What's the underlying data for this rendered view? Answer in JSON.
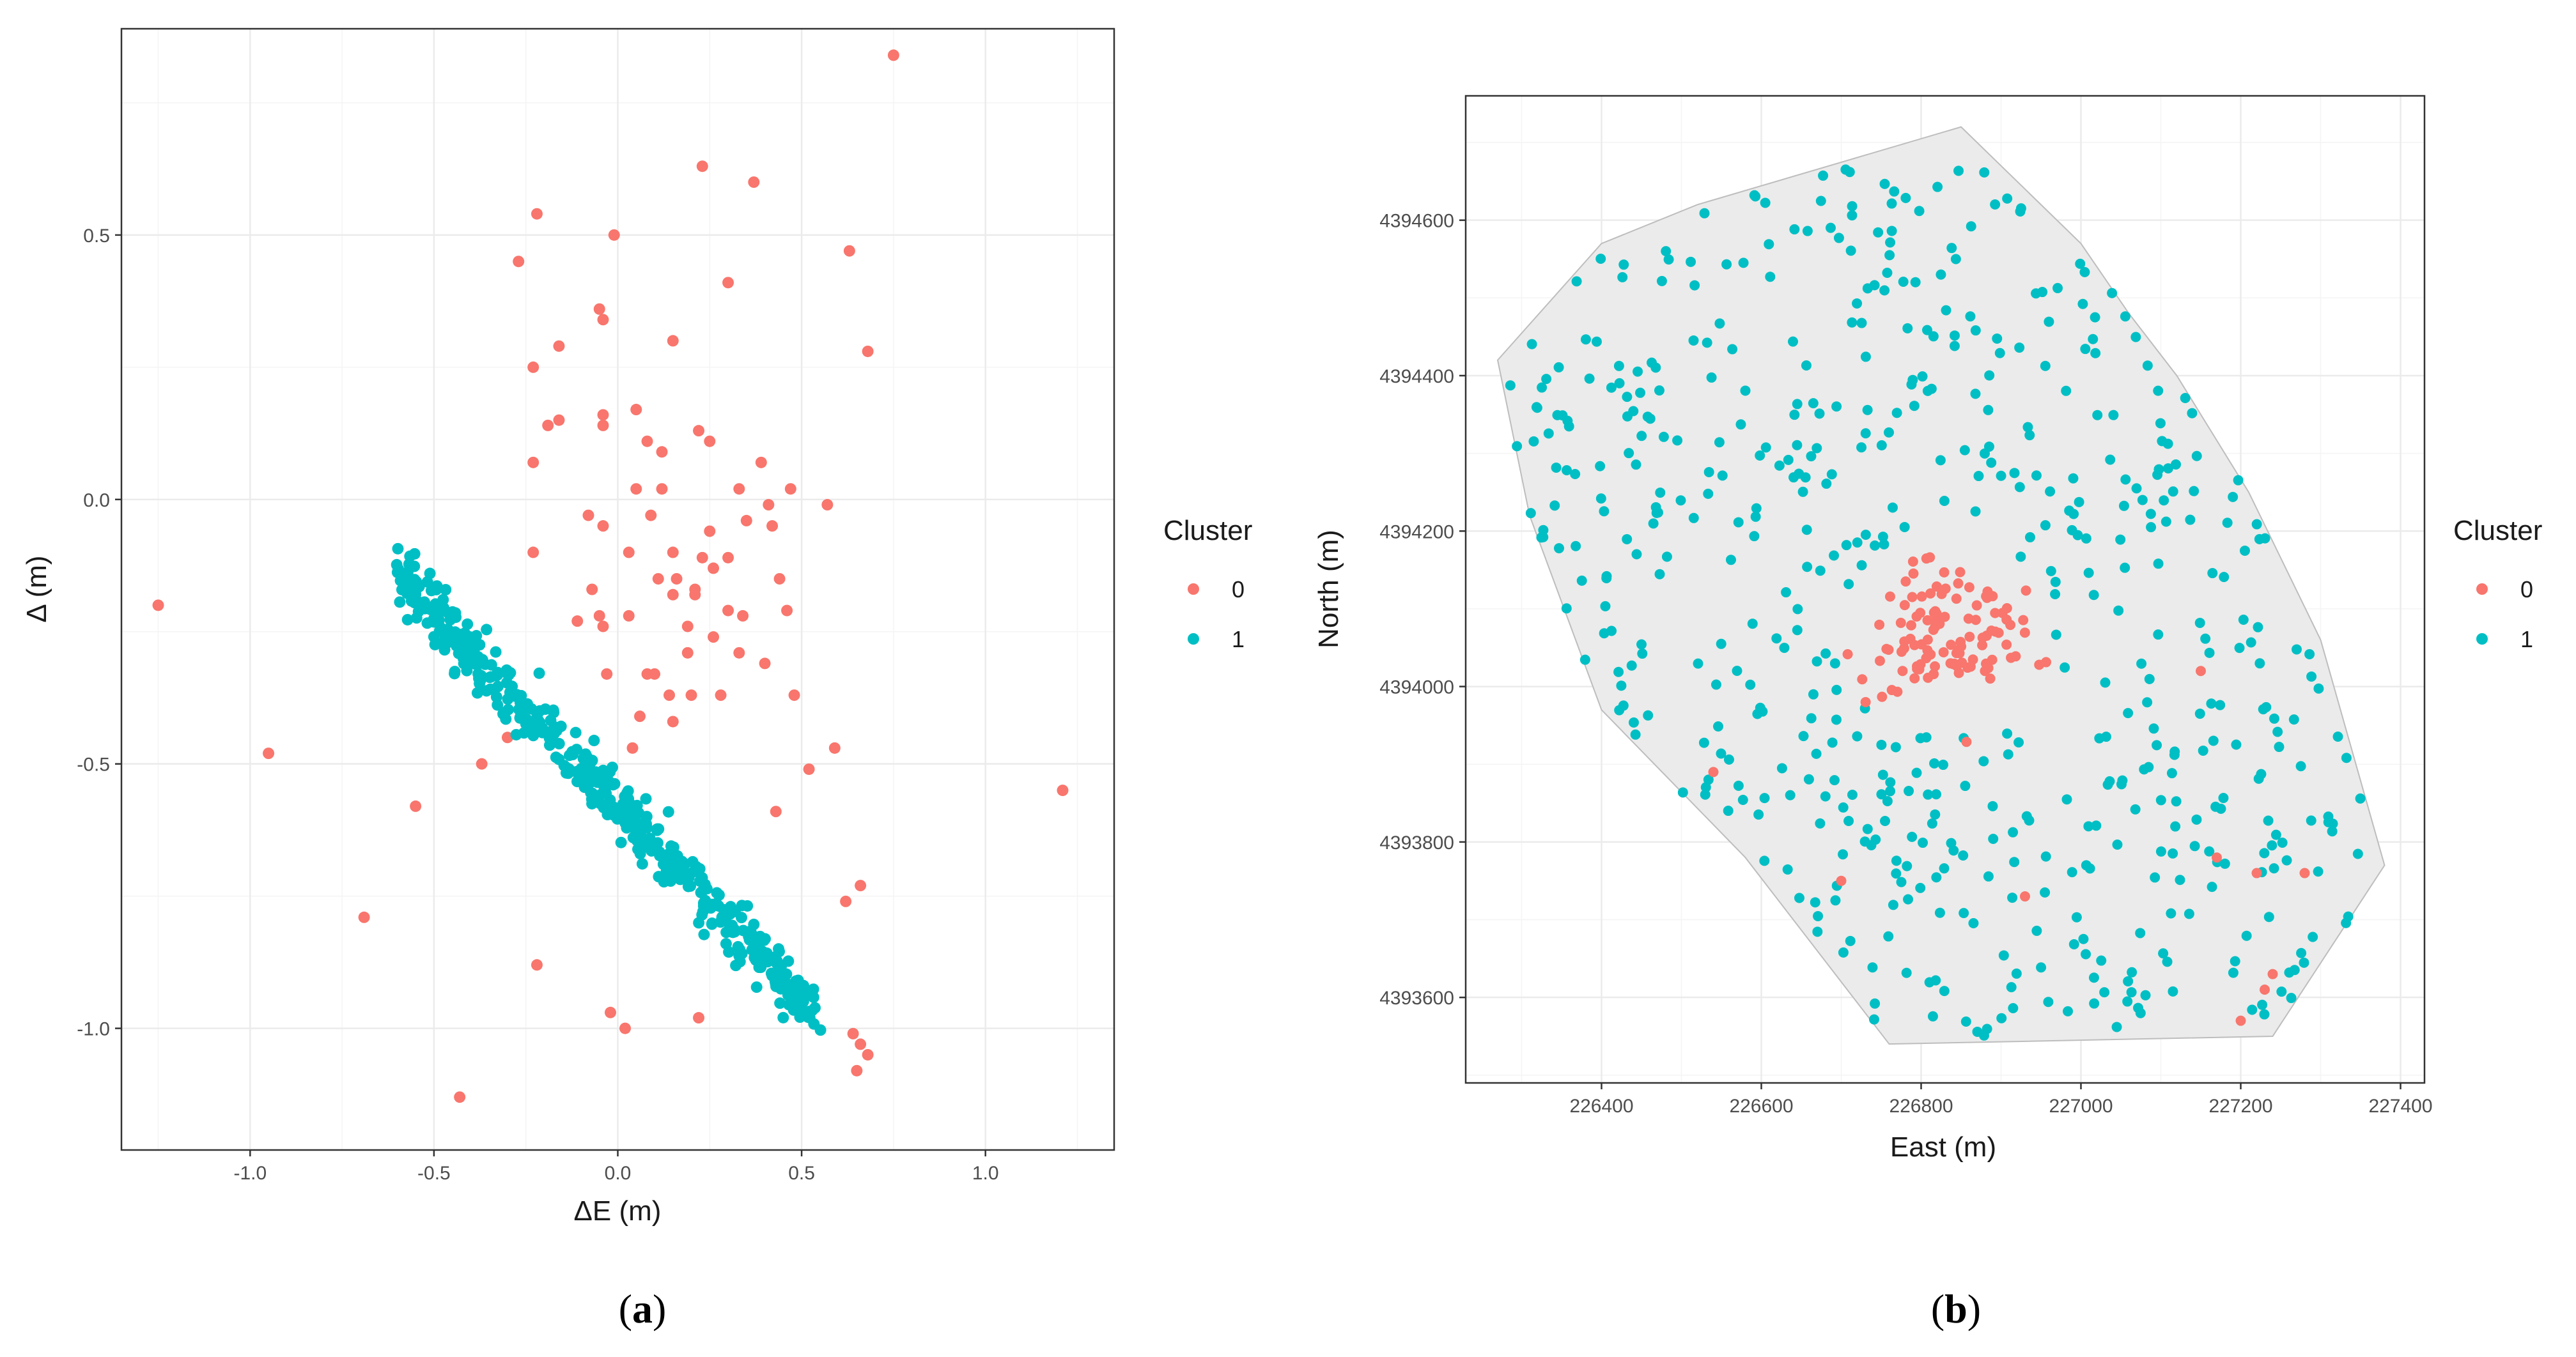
{
  "colors": {
    "cluster0": "#F8766D",
    "cluster1": "#00BFC4",
    "hull_fill": "#EBEBEB",
    "hull_stroke": "#BDBDBD"
  },
  "legend": {
    "title": "Cluster",
    "items": [
      "0",
      "1"
    ]
  },
  "panels": {
    "a": {
      "label_prefix": "(",
      "label_letter": "a",
      "label_suffix": ")"
    },
    "b": {
      "label_prefix": "(",
      "label_letter": "b",
      "label_suffix": ")"
    }
  },
  "chart_data": [
    {
      "type": "scatter",
      "panel": "a",
      "xlabel": "ΔE (m)",
      "ylabel": "Δ (m)",
      "xlim": [
        -1.35,
        1.35
      ],
      "ylim": [
        -1.23,
        0.89
      ],
      "xticks": [
        "-1.0",
        "-0.5",
        "0.0",
        "0.5",
        "1.0"
      ],
      "xtick_values": [
        -1.0,
        -0.5,
        0.0,
        0.5,
        1.0
      ],
      "yticks": [
        "-1.0",
        "-0.5",
        "0.0",
        "0.5"
      ],
      "ytick_values": [
        -1.0,
        -0.5,
        0.0,
        0.5
      ],
      "grid": true,
      "legend_position": "right",
      "series": [
        {
          "name": "0",
          "points": [
            [
              0.75,
              0.84
            ],
            [
              0.23,
              0.63
            ],
            [
              -0.22,
              0.54
            ],
            [
              0.37,
              0.6
            ],
            [
              -0.01,
              0.5
            ],
            [
              -0.27,
              0.45
            ],
            [
              0.3,
              0.41
            ],
            [
              0.63,
              0.47
            ],
            [
              -0.05,
              0.36
            ],
            [
              -0.04,
              0.34
            ],
            [
              0.15,
              0.3
            ],
            [
              -0.16,
              0.29
            ],
            [
              0.68,
              0.28
            ],
            [
              -0.23,
              0.25
            ],
            [
              0.05,
              0.17
            ],
            [
              -0.04,
              0.16
            ],
            [
              -0.04,
              0.14
            ],
            [
              -0.16,
              0.15
            ],
            [
              -0.19,
              0.14
            ],
            [
              0.22,
              0.13
            ],
            [
              0.25,
              0.11
            ],
            [
              0.08,
              0.11
            ],
            [
              0.12,
              0.09
            ],
            [
              -0.23,
              0.07
            ],
            [
              0.39,
              0.07
            ],
            [
              0.05,
              0.02
            ],
            [
              0.12,
              0.02
            ],
            [
              0.33,
              0.02
            ],
            [
              0.47,
              0.02
            ],
            [
              0.09,
              -0.03
            ],
            [
              0.41,
              -0.01
            ],
            [
              0.57,
              -0.01
            ],
            [
              -0.08,
              -0.03
            ],
            [
              0.35,
              -0.04
            ],
            [
              -0.04,
              -0.05
            ],
            [
              0.42,
              -0.05
            ],
            [
              0.25,
              -0.06
            ],
            [
              0.03,
              -0.1
            ],
            [
              0.15,
              -0.1
            ],
            [
              -0.23,
              -0.1
            ],
            [
              0.23,
              -0.11
            ],
            [
              0.3,
              -0.11
            ],
            [
              0.26,
              -0.13
            ],
            [
              0.16,
              -0.15
            ],
            [
              0.44,
              -0.15
            ],
            [
              0.11,
              -0.15
            ],
            [
              -0.07,
              -0.17
            ],
            [
              0.21,
              -0.17
            ],
            [
              0.21,
              -0.18
            ],
            [
              0.15,
              -0.18
            ],
            [
              0.46,
              -0.21
            ],
            [
              -0.05,
              -0.22
            ],
            [
              0.03,
              -0.22
            ],
            [
              0.3,
              -0.21
            ],
            [
              0.34,
              -0.22
            ],
            [
              -0.11,
              -0.23
            ],
            [
              0.19,
              -0.24
            ],
            [
              -0.04,
              -0.24
            ],
            [
              0.26,
              -0.26
            ],
            [
              0.19,
              -0.29
            ],
            [
              0.33,
              -0.29
            ],
            [
              0.4,
              -0.31
            ],
            [
              -0.03,
              -0.33
            ],
            [
              0.08,
              -0.33
            ],
            [
              0.1,
              -0.33
            ],
            [
              0.14,
              -0.37
            ],
            [
              0.2,
              -0.37
            ],
            [
              0.28,
              -0.37
            ],
            [
              0.48,
              -0.37
            ],
            [
              0.06,
              -0.41
            ],
            [
              0.15,
              -0.42
            ],
            [
              -0.3,
              -0.45
            ],
            [
              0.04,
              -0.47
            ],
            [
              0.59,
              -0.47
            ],
            [
              -0.95,
              -0.48
            ],
            [
              -0.37,
              -0.5
            ],
            [
              0.52,
              -0.51
            ],
            [
              -1.25,
              -0.2
            ],
            [
              1.21,
              -0.55
            ],
            [
              -0.55,
              -0.58
            ],
            [
              0.43,
              -0.59
            ],
            [
              0.66,
              -0.73
            ],
            [
              -0.69,
              -0.79
            ],
            [
              0.62,
              -0.76
            ],
            [
              -0.22,
              -0.88
            ],
            [
              -0.02,
              -0.97
            ],
            [
              0.02,
              -1.0
            ],
            [
              0.22,
              -0.98
            ],
            [
              0.64,
              -1.01
            ],
            [
              0.66,
              -1.03
            ],
            [
              0.68,
              -1.05
            ],
            [
              0.65,
              -1.08
            ],
            [
              -0.43,
              -1.13
            ]
          ]
        },
        {
          "name": "1",
          "trend": {
            "from": [
              -0.6,
              -0.14
            ],
            "to": [
              0.55,
              -0.98
            ]
          },
          "point_count": 460
        }
      ]
    },
    {
      "type": "scatter",
      "panel": "b",
      "xlabel": "East (m)",
      "ylabel": "North (m)",
      "xlim": [
        226230,
        227430
      ],
      "ylim": [
        4393490,
        4394760
      ],
      "xticks": [
        "226400",
        "226600",
        "226800",
        "227000",
        "227200",
        "227400"
      ],
      "xtick_values": [
        226400,
        226600,
        226800,
        227000,
        227200,
        227400
      ],
      "yticks": [
        "4393600",
        "4393800",
        "4394000",
        "4394200",
        "4394400",
        "4394600"
      ],
      "ytick_values": [
        4393600,
        4393800,
        4394000,
        4394200,
        4394400,
        4394600
      ],
      "grid": true,
      "legend_position": "right",
      "hull": [
        [
          226400,
          4394570
        ],
        [
          226520,
          4394620
        ],
        [
          226850,
          4394720
        ],
        [
          227000,
          4394570
        ],
        [
          227060,
          4394480
        ],
        [
          227120,
          4394400
        ],
        [
          227210,
          4394250
        ],
        [
          227300,
          4394060
        ],
        [
          227380,
          4393770
        ],
        [
          227240,
          4393550
        ],
        [
          226760,
          4393540
        ],
        [
          226580,
          4393780
        ],
        [
          226400,
          4393970
        ],
        [
          226310,
          4394220
        ],
        [
          226270,
          4394420
        ]
      ],
      "series": [
        {
          "name": "0",
          "center": [
            226830,
            4394070
          ],
          "point_count": 110,
          "outliers": [
            [
              226540,
              4393890
            ],
            [
              226700,
              4393750
            ],
            [
              226930,
              4393730
            ],
            [
              227150,
              4394020
            ],
            [
              227170,
              4393780
            ],
            [
              227220,
              4393760
            ],
            [
              227230,
              4393610
            ],
            [
              227240,
              4393630
            ],
            [
              227200,
              4393570
            ],
            [
              227280,
              4393760
            ]
          ]
        },
        {
          "name": "1",
          "point_count": 560
        }
      ]
    }
  ]
}
